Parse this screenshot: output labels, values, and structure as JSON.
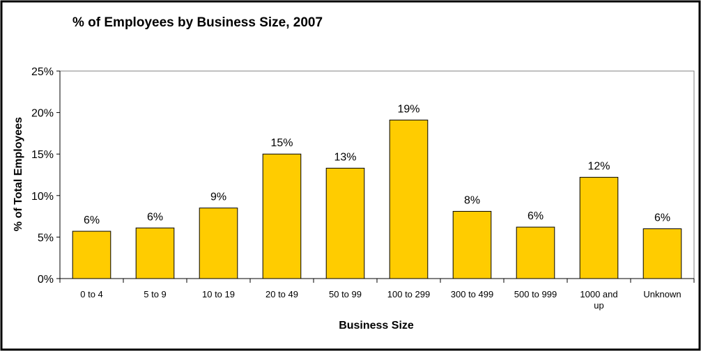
{
  "chart_data": {
    "type": "bar",
    "title": "% of Employees by Business Size, 2007",
    "xlabel": "Business Size",
    "ylabel": "% of Total Employees",
    "categories": [
      "0 to 4",
      "5 to 9",
      "10 to 19",
      "20 to 49",
      "50 to 99",
      "100 to 299",
      "300 to 499",
      "500 to 999",
      "1000 and up",
      "Unknown"
    ],
    "values": [
      5.7,
      6.1,
      8.5,
      15.0,
      13.3,
      19.1,
      8.1,
      6.2,
      12.2,
      6.0
    ],
    "data_labels": [
      "6%",
      "6%",
      "9%",
      "15%",
      "13%",
      "19%",
      "8%",
      "6%",
      "12%",
      "6%"
    ],
    "yticks": [
      0,
      5,
      10,
      15,
      20,
      25
    ],
    "ytick_labels": [
      "0%",
      "5%",
      "10%",
      "15%",
      "20%",
      "25%"
    ],
    "ylim": [
      0,
      25
    ],
    "grid": false,
    "legend": "none",
    "bar_color": "#FFCC00",
    "bar_stroke": "#000000",
    "border_color": "#000000"
  }
}
